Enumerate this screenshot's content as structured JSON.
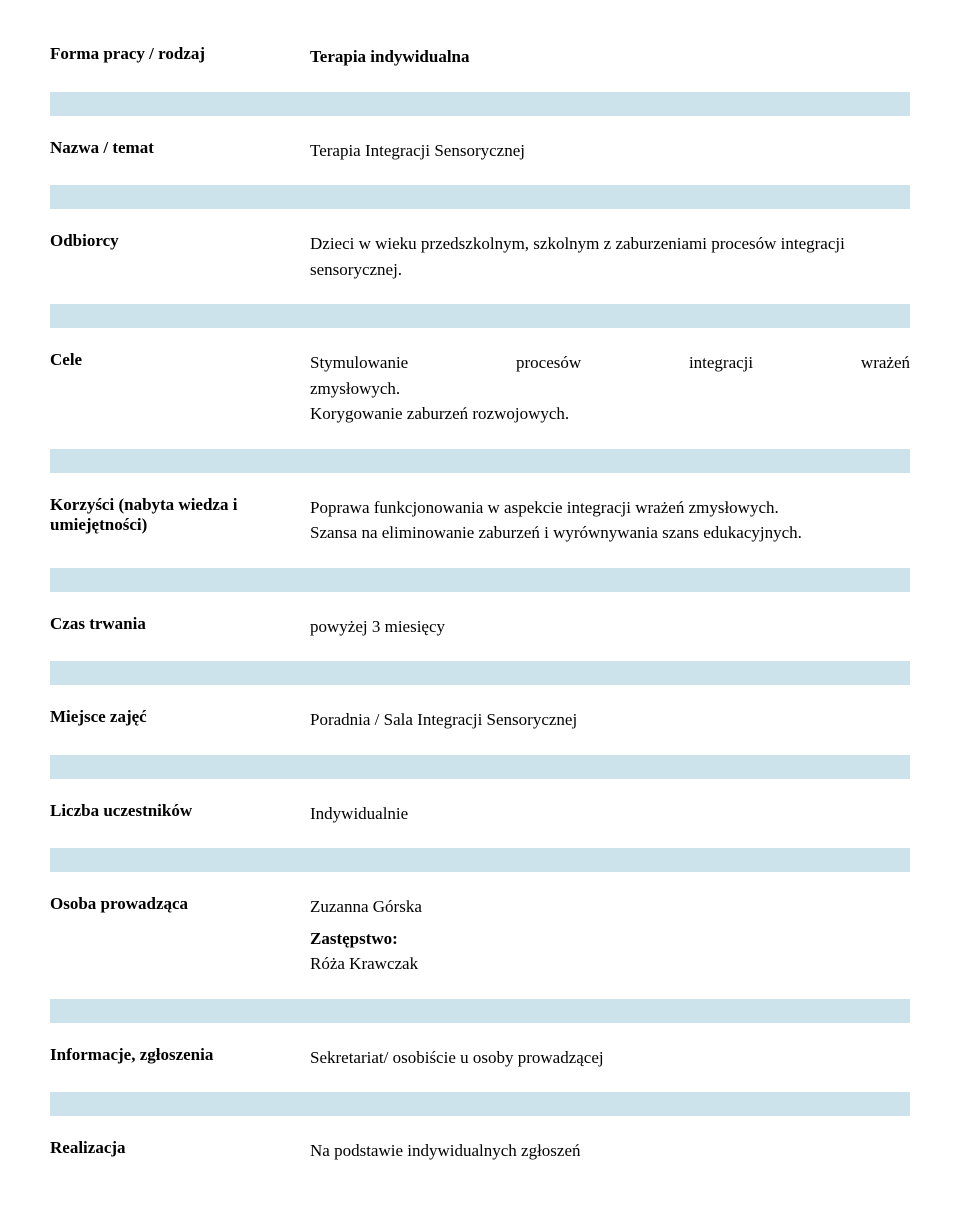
{
  "divider_color": "#cde3ec",
  "text_color": "#000000",
  "fontsize": 17,
  "rows": [
    {
      "label": "Forma pracy / rodzaj",
      "value": "Terapia indywidualna",
      "header": true
    },
    {
      "label": "Nazwa / temat",
      "value": "Terapia Integracji Sensorycznej"
    },
    {
      "label": "Odbiorcy",
      "value": "Dzieci w wieku przedszkolnym, szkolnym z zaburzeniami procesów integracji sensorycznej."
    },
    {
      "label": "Cele",
      "justified_line": [
        "Stymulowanie",
        "procesów",
        "integracji",
        "wrażeń"
      ],
      "value_rest": "zmysłowych.\nKorygowanie zaburzeń rozwojowych."
    },
    {
      "label": "Korzyści (nabyta wiedza i umiejętności)",
      "value": "Poprawa funkcjonowania w aspekcie integracji wrażeń zmysłowych.\nSzansa na eliminowanie zaburzeń i wyrównywania szans edukacyjnych."
    },
    {
      "label": "Czas trwania",
      "value": "powyżej 3 miesięcy"
    },
    {
      "label": "Miejsce zajęć",
      "value": "Poradnia / Sala Integracji Sensorycznej"
    },
    {
      "label": "Liczba uczestników",
      "value": "Indywidualnie"
    },
    {
      "label": "Osoba prowadząca",
      "value": "Zuzanna Górska",
      "sub_label": "Zastępstwo:",
      "sub_value": "Róża Krawczak"
    },
    {
      "label": "Informacje, zgłoszenia",
      "value": "Sekretariat/ osobiście u osoby prowadzącej"
    },
    {
      "label": "Realizacja",
      "value": "Na podstawie indywidualnych zgłoszeń"
    }
  ]
}
